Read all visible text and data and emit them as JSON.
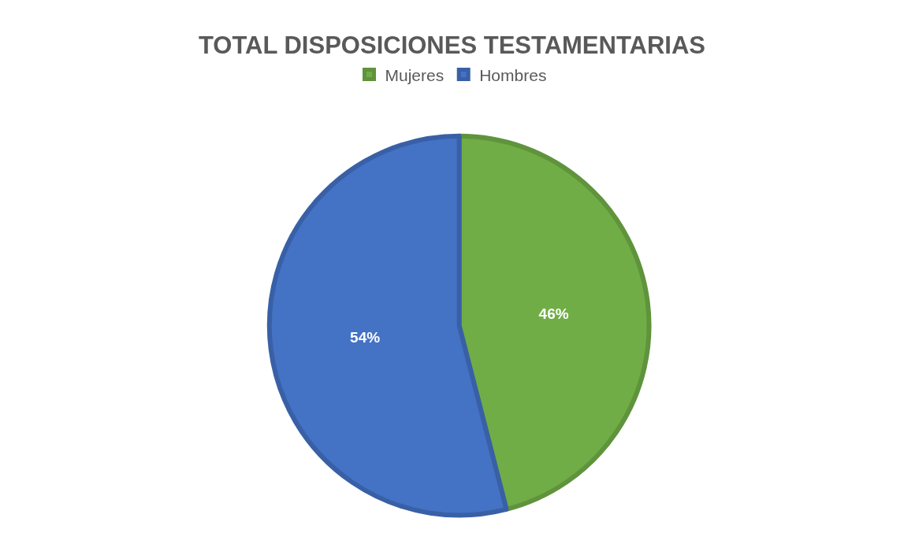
{
  "chart_data": {
    "type": "pie",
    "title": "TOTAL DISPOSICIONES TESTAMENTARIAS",
    "categories": [
      "Mujeres",
      "Hombres"
    ],
    "values": [
      46,
      54
    ],
    "colors": [
      "#70ad47",
      "#4472c4"
    ],
    "value_labels": [
      "46%",
      "54%"
    ],
    "legend": "top"
  }
}
